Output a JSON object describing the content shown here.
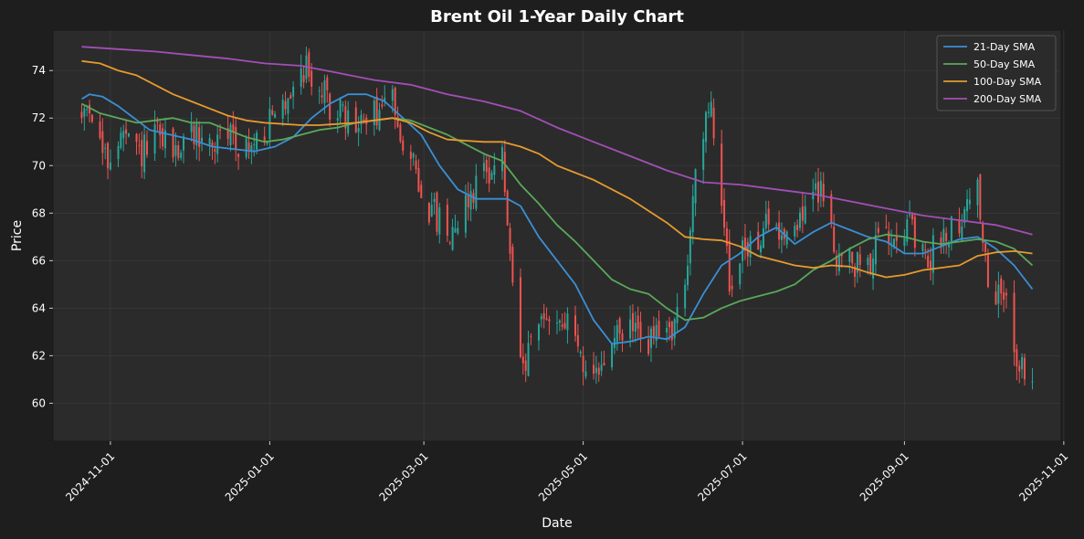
{
  "chart_data": {
    "type": "candlestick",
    "title": "Brent Oil 1-Year Daily Chart",
    "xlabel": "Date",
    "ylabel": "Price",
    "xlim": [
      "2024-10-10",
      "2025-10-31"
    ],
    "ylim": [
      58.4,
      75.7
    ],
    "grid": true,
    "legend_position": "top-right",
    "colors": {
      "background": "#1e1e1e",
      "plot_background": "#2b2b2b",
      "grid": "#3a3a3a",
      "text": "#ffffff",
      "up_candle": "#26a69a",
      "down_candle": "#ef5350"
    },
    "y_ticks": [
      60,
      62,
      64,
      66,
      68,
      70,
      72,
      74
    ],
    "x_ticks": [
      "2024-11-01",
      "2025-01-01",
      "2025-03-01",
      "2025-05-01",
      "2025-07-01",
      "2025-09-01",
      "2025-11-01"
    ],
    "price_keypoints": [
      [
        "2024-10-21",
        72.0
      ],
      [
        "2024-10-24",
        72.7
      ],
      [
        "2024-10-30",
        70.1
      ],
      [
        "2024-11-05",
        71.2
      ],
      [
        "2024-11-12",
        70.4
      ],
      [
        "2024-11-19",
        71.2
      ],
      [
        "2024-11-26",
        70.6
      ],
      [
        "2024-12-03",
        71.4
      ],
      [
        "2024-12-10",
        70.8
      ],
      [
        "2024-12-17",
        71.4
      ],
      [
        "2024-12-24",
        70.6
      ],
      [
        "2024-12-31",
        71.6
      ],
      [
        "2025-01-06",
        72.4
      ],
      [
        "2025-01-10",
        73.6
      ],
      [
        "2025-01-15",
        74.2
      ],
      [
        "2025-01-20",
        73.2
      ],
      [
        "2025-01-27",
        72.2
      ],
      [
        "2025-02-03",
        71.6
      ],
      [
        "2025-02-10",
        72.1
      ],
      [
        "2025-02-17",
        72.8
      ],
      [
        "2025-02-24",
        70.2
      ],
      [
        "2025-03-03",
        68.2
      ],
      [
        "2025-03-10",
        67.2
      ],
      [
        "2025-03-17",
        68.4
      ],
      [
        "2025-03-24",
        69.8
      ],
      [
        "2025-03-31",
        70.3
      ],
      [
        "2025-04-04",
        64.5
      ],
      [
        "2025-04-08",
        61.2
      ],
      [
        "2025-04-14",
        63.3
      ],
      [
        "2025-04-21",
        63.8
      ],
      [
        "2025-04-28",
        62.8
      ],
      [
        "2025-05-05",
        60.6
      ],
      [
        "2025-05-12",
        62.6
      ],
      [
        "2025-05-19",
        63.2
      ],
      [
        "2025-05-26",
        62.6
      ],
      [
        "2025-06-02",
        62.9
      ],
      [
        "2025-06-09",
        64.4
      ],
      [
        "2025-06-13",
        70.3
      ],
      [
        "2025-06-19",
        72.2
      ],
      [
        "2025-06-23",
        68.6
      ],
      [
        "2025-06-26",
        65.2
      ],
      [
        "2025-07-03",
        66.6
      ],
      [
        "2025-07-10",
        67.4
      ],
      [
        "2025-07-17",
        67.3
      ],
      [
        "2025-07-24",
        67.9
      ],
      [
        "2025-07-31",
        69.2
      ],
      [
        "2025-08-05",
        66.6
      ],
      [
        "2025-08-12",
        65.7
      ],
      [
        "2025-08-19",
        66.1
      ],
      [
        "2025-08-26",
        67.4
      ],
      [
        "2025-09-02",
        67.6
      ],
      [
        "2025-09-09",
        65.8
      ],
      [
        "2025-09-16",
        67.2
      ],
      [
        "2025-09-23",
        67.9
      ],
      [
        "2025-09-29",
        69.2
      ],
      [
        "2025-10-03",
        64.6
      ],
      [
        "2025-10-10",
        64.4
      ],
      [
        "2025-10-13",
        62.6
      ],
      [
        "2025-10-16",
        61.4
      ],
      [
        "2025-10-20",
        61.0
      ]
    ],
    "series": [
      {
        "name": "21-Day SMA",
        "color": "#3a8fd6",
        "points": [
          [
            "2024-10-21",
            72.8
          ],
          [
            "2024-10-24",
            73.0
          ],
          [
            "2024-10-29",
            72.9
          ],
          [
            "2024-11-04",
            72.5
          ],
          [
            "2024-11-10",
            72.0
          ],
          [
            "2024-11-16",
            71.5
          ],
          [
            "2024-11-24",
            71.3
          ],
          [
            "2024-12-02",
            71.1
          ],
          [
            "2024-12-10",
            70.8
          ],
          [
            "2024-12-18",
            70.7
          ],
          [
            "2024-12-26",
            70.6
          ],
          [
            "2025-01-03",
            70.8
          ],
          [
            "2025-01-10",
            71.2
          ],
          [
            "2025-01-17",
            72.0
          ],
          [
            "2025-01-24",
            72.6
          ],
          [
            "2025-01-31",
            73.0
          ],
          [
            "2025-02-07",
            73.0
          ],
          [
            "2025-02-14",
            72.7
          ],
          [
            "2025-02-21",
            72.0
          ],
          [
            "2025-02-28",
            71.3
          ],
          [
            "2025-03-07",
            70.0
          ],
          [
            "2025-03-14",
            69.0
          ],
          [
            "2025-03-21",
            68.6
          ],
          [
            "2025-03-28",
            68.6
          ],
          [
            "2025-04-02",
            68.6
          ],
          [
            "2025-04-07",
            68.3
          ],
          [
            "2025-04-14",
            67.0
          ],
          [
            "2025-04-21",
            66.0
          ],
          [
            "2025-04-28",
            65.0
          ],
          [
            "2025-05-05",
            63.5
          ],
          [
            "2025-05-12",
            62.5
          ],
          [
            "2025-05-19",
            62.6
          ],
          [
            "2025-05-26",
            62.8
          ],
          [
            "2025-06-02",
            62.7
          ],
          [
            "2025-06-09",
            63.2
          ],
          [
            "2025-06-16",
            64.6
          ],
          [
            "2025-06-23",
            65.8
          ],
          [
            "2025-06-30",
            66.3
          ],
          [
            "2025-07-07",
            67.0
          ],
          [
            "2025-07-14",
            67.4
          ],
          [
            "2025-07-21",
            66.7
          ],
          [
            "2025-07-28",
            67.2
          ],
          [
            "2025-08-04",
            67.6
          ],
          [
            "2025-08-11",
            67.3
          ],
          [
            "2025-08-18",
            67.0
          ],
          [
            "2025-08-25",
            66.8
          ],
          [
            "2025-09-01",
            66.3
          ],
          [
            "2025-09-08",
            66.3
          ],
          [
            "2025-09-15",
            66.6
          ],
          [
            "2025-09-22",
            66.9
          ],
          [
            "2025-09-29",
            67.0
          ],
          [
            "2025-10-06",
            66.5
          ],
          [
            "2025-10-13",
            65.8
          ],
          [
            "2025-10-20",
            64.8
          ]
        ]
      },
      {
        "name": "50-Day SMA",
        "color": "#5aa85a",
        "points": [
          [
            "2024-10-21",
            72.6
          ],
          [
            "2024-10-28",
            72.2
          ],
          [
            "2024-11-04",
            72.0
          ],
          [
            "2024-11-11",
            71.8
          ],
          [
            "2024-11-18",
            71.9
          ],
          [
            "2024-11-25",
            72.0
          ],
          [
            "2024-12-02",
            71.8
          ],
          [
            "2024-12-09",
            71.8
          ],
          [
            "2024-12-16",
            71.5
          ],
          [
            "2024-12-23",
            71.2
          ],
          [
            "2024-12-30",
            71.0
          ],
          [
            "2025-01-06",
            71.1
          ],
          [
            "2025-01-13",
            71.3
          ],
          [
            "2025-01-20",
            71.5
          ],
          [
            "2025-01-27",
            71.6
          ],
          [
            "2025-02-03",
            71.8
          ],
          [
            "2025-02-10",
            71.9
          ],
          [
            "2025-02-17",
            72.0
          ],
          [
            "2025-02-24",
            71.9
          ],
          [
            "2025-03-03",
            71.6
          ],
          [
            "2025-03-10",
            71.3
          ],
          [
            "2025-03-17",
            70.9
          ],
          [
            "2025-03-24",
            70.5
          ],
          [
            "2025-03-31",
            70.2
          ],
          [
            "2025-04-07",
            69.2
          ],
          [
            "2025-04-14",
            68.4
          ],
          [
            "2025-04-21",
            67.5
          ],
          [
            "2025-04-28",
            66.8
          ],
          [
            "2025-05-05",
            66.0
          ],
          [
            "2025-05-12",
            65.2
          ],
          [
            "2025-05-19",
            64.8
          ],
          [
            "2025-05-26",
            64.6
          ],
          [
            "2025-06-02",
            64.0
          ],
          [
            "2025-06-09",
            63.5
          ],
          [
            "2025-06-16",
            63.6
          ],
          [
            "2025-06-23",
            64.0
          ],
          [
            "2025-06-30",
            64.3
          ],
          [
            "2025-07-07",
            64.5
          ],
          [
            "2025-07-14",
            64.7
          ],
          [
            "2025-07-21",
            65.0
          ],
          [
            "2025-07-28",
            65.6
          ],
          [
            "2025-08-04",
            66.0
          ],
          [
            "2025-08-11",
            66.5
          ],
          [
            "2025-08-18",
            66.9
          ],
          [
            "2025-08-25",
            67.1
          ],
          [
            "2025-09-01",
            67.0
          ],
          [
            "2025-09-08",
            66.8
          ],
          [
            "2025-09-15",
            66.7
          ],
          [
            "2025-09-22",
            66.8
          ],
          [
            "2025-09-29",
            66.9
          ],
          [
            "2025-10-06",
            66.8
          ],
          [
            "2025-10-13",
            66.5
          ],
          [
            "2025-10-20",
            65.8
          ]
        ]
      },
      {
        "name": "100-Day SMA",
        "color": "#e69a2e",
        "points": [
          [
            "2024-10-21",
            74.4
          ],
          [
            "2024-10-28",
            74.3
          ],
          [
            "2024-11-04",
            74.0
          ],
          [
            "2024-11-11",
            73.8
          ],
          [
            "2024-11-18",
            73.4
          ],
          [
            "2024-11-25",
            73.0
          ],
          [
            "2024-12-02",
            72.7
          ],
          [
            "2024-12-09",
            72.4
          ],
          [
            "2024-12-16",
            72.1
          ],
          [
            "2024-12-23",
            71.9
          ],
          [
            "2024-12-30",
            71.8
          ],
          [
            "2025-01-06",
            71.75
          ],
          [
            "2025-01-13",
            71.7
          ],
          [
            "2025-01-20",
            71.7
          ],
          [
            "2025-01-27",
            71.75
          ],
          [
            "2025-02-03",
            71.8
          ],
          [
            "2025-02-10",
            71.9
          ],
          [
            "2025-02-17",
            72.0
          ],
          [
            "2025-02-24",
            71.8
          ],
          [
            "2025-03-03",
            71.4
          ],
          [
            "2025-03-10",
            71.1
          ],
          [
            "2025-03-17",
            71.05
          ],
          [
            "2025-03-24",
            71.0
          ],
          [
            "2025-03-31",
            71.0
          ],
          [
            "2025-04-07",
            70.8
          ],
          [
            "2025-04-14",
            70.5
          ],
          [
            "2025-04-21",
            70.0
          ],
          [
            "2025-04-28",
            69.7
          ],
          [
            "2025-05-05",
            69.4
          ],
          [
            "2025-05-12",
            69.0
          ],
          [
            "2025-05-19",
            68.6
          ],
          [
            "2025-05-26",
            68.1
          ],
          [
            "2025-06-02",
            67.6
          ],
          [
            "2025-06-09",
            67.0
          ],
          [
            "2025-06-16",
            66.9
          ],
          [
            "2025-06-23",
            66.85
          ],
          [
            "2025-06-30",
            66.6
          ],
          [
            "2025-07-07",
            66.2
          ],
          [
            "2025-07-14",
            66.0
          ],
          [
            "2025-07-21",
            65.8
          ],
          [
            "2025-07-28",
            65.7
          ],
          [
            "2025-08-04",
            65.8
          ],
          [
            "2025-08-11",
            65.75
          ],
          [
            "2025-08-18",
            65.5
          ],
          [
            "2025-08-25",
            65.3
          ],
          [
            "2025-09-01",
            65.4
          ],
          [
            "2025-09-08",
            65.6
          ],
          [
            "2025-09-15",
            65.7
          ],
          [
            "2025-09-22",
            65.8
          ],
          [
            "2025-09-29",
            66.2
          ],
          [
            "2025-10-06",
            66.35
          ],
          [
            "2025-10-13",
            66.4
          ],
          [
            "2025-10-20",
            66.3
          ]
        ]
      },
      {
        "name": "200-Day SMA",
        "color": "#a24fb6",
        "points": [
          [
            "2024-10-21",
            75.0
          ],
          [
            "2024-11-04",
            74.9
          ],
          [
            "2024-11-18",
            74.8
          ],
          [
            "2024-12-02",
            74.65
          ],
          [
            "2024-12-16",
            74.5
          ],
          [
            "2024-12-30",
            74.3
          ],
          [
            "2025-01-13",
            74.2
          ],
          [
            "2025-01-27",
            73.9
          ],
          [
            "2025-02-10",
            73.6
          ],
          [
            "2025-02-24",
            73.4
          ],
          [
            "2025-03-10",
            73.0
          ],
          [
            "2025-03-24",
            72.7
          ],
          [
            "2025-04-07",
            72.3
          ],
          [
            "2025-04-21",
            71.6
          ],
          [
            "2025-05-05",
            71.0
          ],
          [
            "2025-05-19",
            70.4
          ],
          [
            "2025-06-02",
            69.8
          ],
          [
            "2025-06-16",
            69.3
          ],
          [
            "2025-06-30",
            69.2
          ],
          [
            "2025-07-14",
            69.0
          ],
          [
            "2025-07-28",
            68.8
          ],
          [
            "2025-08-11",
            68.5
          ],
          [
            "2025-08-25",
            68.2
          ],
          [
            "2025-09-08",
            67.9
          ],
          [
            "2025-09-22",
            67.7
          ],
          [
            "2025-10-06",
            67.5
          ],
          [
            "2025-10-20",
            67.1
          ]
        ]
      }
    ]
  }
}
